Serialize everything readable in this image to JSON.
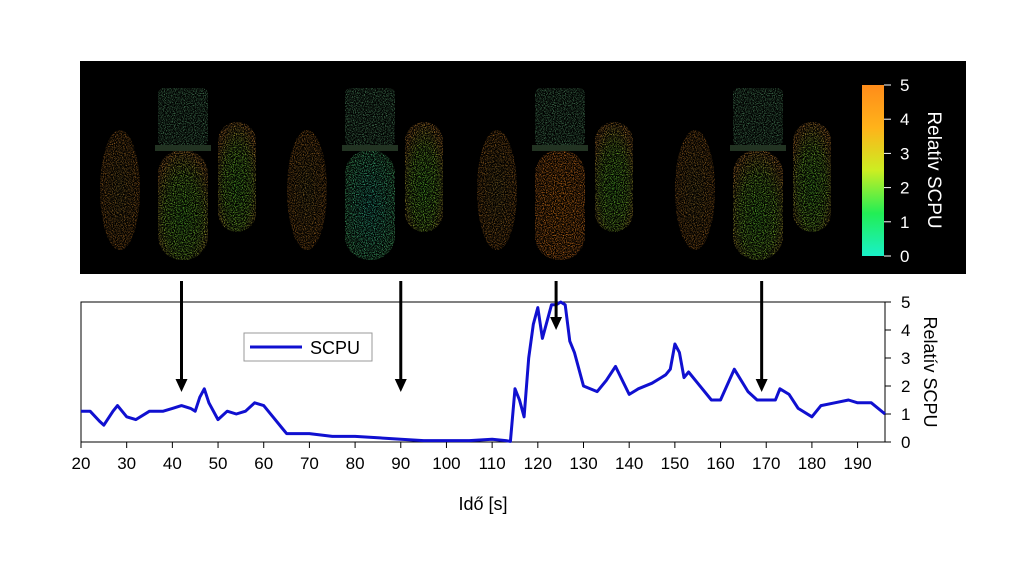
{
  "colors": {
    "series": "#1010d0",
    "arrow": "#000000",
    "image_bg": "#000000",
    "colorbar": [
      "#19f0c8",
      "#22ee55",
      "#ccee22",
      "#ffb31a",
      "#ff8c1a"
    ]
  },
  "image_panel": {
    "colorbar": {
      "title": "Relatív SCPU",
      "ticks": [
        "0",
        "1",
        "2",
        "3",
        "4",
        "5"
      ],
      "range": [
        0,
        5
      ]
    }
  },
  "chart_data": {
    "type": "line",
    "xlabel": "Idő [s]",
    "ylabel": "Relatív SCPU",
    "xlim": [
      20,
      196
    ],
    "ylim": [
      0,
      5
    ],
    "xticks": [
      20,
      30,
      40,
      50,
      60,
      70,
      80,
      90,
      100,
      110,
      120,
      130,
      140,
      150,
      160,
      170,
      180,
      190
    ],
    "yticks": [
      0,
      1,
      2,
      3,
      4,
      5
    ],
    "legend": "top-left",
    "grid": false,
    "arrows_at_x": [
      42,
      90,
      124,
      169
    ],
    "series": [
      {
        "name": "SCPU",
        "x": [
          20,
          22,
          24,
          25,
          27,
          28,
          30,
          32,
          35,
          38,
          40,
          42,
          44,
          45,
          46,
          47,
          48,
          50,
          52,
          54,
          56,
          58,
          60,
          62,
          64,
          65,
          70,
          75,
          80,
          85,
          90,
          95,
          100,
          105,
          110,
          113,
          114,
          115,
          116,
          117,
          118,
          119,
          120,
          121,
          123,
          124,
          125,
          126,
          127,
          128,
          130,
          133,
          135,
          137,
          140,
          142,
          145,
          147,
          148,
          149,
          150,
          151,
          152,
          153,
          155,
          158,
          160,
          163,
          166,
          168,
          170,
          172,
          173,
          175,
          177,
          180,
          182,
          185,
          188,
          190,
          193,
          196
        ],
        "y": [
          1.1,
          1.1,
          0.75,
          0.6,
          1.1,
          1.3,
          0.9,
          0.8,
          1.1,
          1.1,
          1.2,
          1.3,
          1.2,
          1.1,
          1.6,
          1.9,
          1.4,
          0.8,
          1.1,
          1.0,
          1.1,
          1.4,
          1.3,
          0.9,
          0.5,
          0.3,
          0.3,
          0.2,
          0.2,
          0.15,
          0.1,
          0.05,
          0.05,
          0.05,
          0.1,
          0.05,
          0.02,
          1.9,
          1.5,
          0.9,
          3.0,
          4.2,
          4.8,
          3.7,
          4.9,
          4.9,
          5.0,
          4.9,
          3.6,
          3.2,
          2.0,
          1.8,
          2.2,
          2.7,
          1.7,
          1.9,
          2.1,
          2.3,
          2.4,
          2.6,
          3.5,
          3.2,
          2.3,
          2.5,
          2.1,
          1.5,
          1.5,
          2.6,
          1.8,
          1.5,
          1.5,
          1.5,
          1.9,
          1.7,
          1.2,
          0.9,
          1.3,
          1.4,
          1.5,
          1.4,
          1.4,
          1.0
        ]
      }
    ]
  }
}
